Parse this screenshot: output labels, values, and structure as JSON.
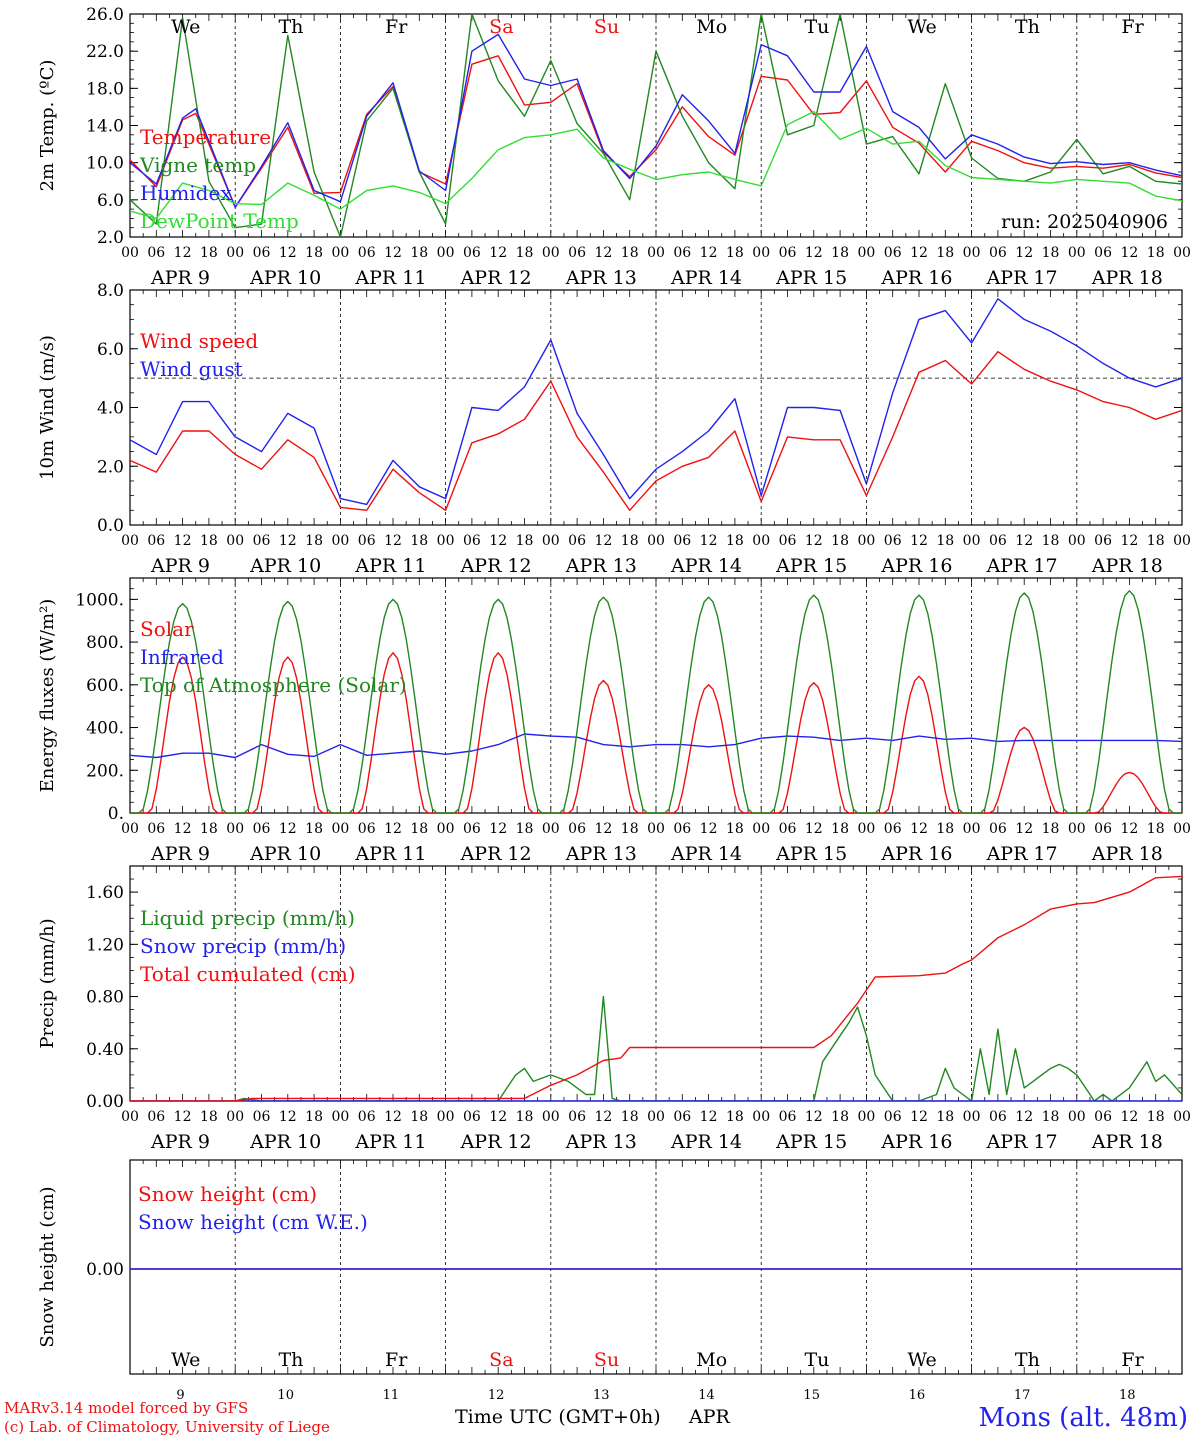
{
  "colors": {
    "red": "#ee1111",
    "green": "#228822",
    "blue": "#2222ee",
    "light_green": "#33dd33",
    "axis": "#000000"
  },
  "days": [
    {
      "day": "We",
      "date": "APR  9",
      "num": "9",
      "weekend": false
    },
    {
      "day": "Th",
      "date": "APR 10",
      "num": "10",
      "weekend": false
    },
    {
      "day": "Fr",
      "date": "APR 11",
      "num": "11",
      "weekend": false
    },
    {
      "day": "Sa",
      "date": "APR 12",
      "num": "12",
      "weekend": true
    },
    {
      "day": "Su",
      "date": "APR 13",
      "num": "13",
      "weekend": true
    },
    {
      "day": "Mo",
      "date": "APR 14",
      "num": "14",
      "weekend": false
    },
    {
      "day": "Tu",
      "date": "APR 15",
      "num": "15",
      "weekend": false
    },
    {
      "day": "We",
      "date": "APR 16",
      "num": "16",
      "weekend": false
    },
    {
      "day": "Th",
      "date": "APR 17",
      "num": "17",
      "weekend": false
    },
    {
      "day": "Fr",
      "date": "APR 18",
      "num": "18",
      "weekend": false
    }
  ],
  "hour_ticks": [
    "00",
    "06",
    "12",
    "18"
  ],
  "run_label": "run: 2025040906",
  "footer": {
    "credit1": "MARv3.14 model forced by GFS",
    "credit2": "(c) Lab. of Climatology, University of Liege",
    "time_label": "Time UTC (GMT+0h)",
    "month": "APR",
    "station": "Mons (alt. 48m)"
  },
  "chart_data": [
    {
      "type": "line",
      "ylabel": "2m Temp. (ºC)",
      "ylim": [
        2,
        26
      ],
      "yticks": [
        "2.0",
        "6.0",
        "10.0",
        "14.0",
        "18.0",
        "22.0",
        "26.0"
      ],
      "series": [
        {
          "name": "Temperature",
          "color": "red",
          "x": [
            0,
            6,
            12,
            15,
            18,
            24,
            30,
            36,
            42,
            48,
            54,
            60,
            66,
            72,
            78,
            84,
            90,
            96,
            102,
            108,
            114,
            120,
            126,
            132,
            138,
            144,
            150,
            156,
            162,
            168,
            174,
            180,
            186,
            192,
            198,
            204,
            210,
            216,
            222,
            228,
            234,
            240
          ],
          "y": [
            10.3,
            7.4,
            14.6,
            15.3,
            12.0,
            5.2,
            9.4,
            13.8,
            6.7,
            6.8,
            15.2,
            18.2,
            9.0,
            7.7,
            20.6,
            21.5,
            16.2,
            16.5,
            18.5,
            11.1,
            8.5,
            11.4,
            16.0,
            12.8,
            10.8,
            19.3,
            18.9,
            15.2,
            15.4,
            18.8,
            13.8,
            12.1,
            9.0,
            12.3,
            11.3,
            10.0,
            9.4,
            9.6,
            9.4,
            9.8,
            8.9,
            8.4
          ]
        },
        {
          "name": "Vigne temp",
          "color": "green",
          "x": [
            0,
            6,
            12,
            18,
            24,
            30,
            36,
            42,
            48,
            54,
            60,
            66,
            72,
            78,
            84,
            90,
            96,
            102,
            108,
            114,
            120,
            126,
            132,
            138,
            144,
            150,
            156,
            162,
            168,
            174,
            180,
            186,
            192,
            198,
            204,
            210,
            216,
            222,
            228,
            234,
            240
          ],
          "y": [
            6.0,
            3.4,
            25.6,
            8.0,
            3.0,
            3.4,
            23.7,
            9.0,
            2.0,
            14.5,
            18.0,
            9.0,
            3.4,
            26.0,
            18.8,
            15.0,
            21.0,
            14.2,
            11.0,
            6.0,
            22.0,
            15.0,
            10.0,
            7.2,
            26.0,
            13.0,
            14.0,
            26.0,
            12.0,
            12.8,
            8.8,
            18.5,
            10.5,
            8.3,
            8.0,
            9.0,
            12.5,
            8.8,
            9.6,
            8.0,
            7.7
          ]
        },
        {
          "name": "Humidex",
          "color": "blue",
          "x": [
            0,
            6,
            12,
            15,
            18,
            24,
            30,
            36,
            42,
            48,
            54,
            60,
            66,
            72,
            78,
            84,
            90,
            96,
            102,
            108,
            114,
            120,
            126,
            132,
            138,
            144,
            150,
            156,
            162,
            168,
            174,
            180,
            186,
            192,
            198,
            204,
            210,
            216,
            222,
            228,
            234,
            240
          ],
          "y": [
            10.0,
            7.7,
            14.8,
            15.8,
            12.3,
            5.2,
            9.6,
            14.3,
            7.0,
            5.8,
            15.0,
            18.6,
            9.1,
            7.0,
            22.0,
            23.8,
            19.0,
            18.3,
            19.0,
            11.3,
            8.3,
            11.8,
            17.3,
            14.5,
            11.0,
            22.7,
            21.5,
            17.6,
            17.6,
            22.5,
            15.5,
            13.8,
            10.4,
            13.0,
            12.0,
            10.6,
            9.9,
            10.1,
            9.8,
            10.0,
            9.2,
            8.6
          ]
        },
        {
          "name": "DewPoint Temp",
          "color": "light_green",
          "x": [
            0,
            6,
            12,
            18,
            24,
            30,
            36,
            42,
            48,
            54,
            60,
            66,
            72,
            78,
            84,
            90,
            96,
            102,
            108,
            114,
            120,
            126,
            132,
            138,
            144,
            150,
            156,
            162,
            168,
            174,
            180,
            186,
            192,
            198,
            204,
            210,
            216,
            222,
            228,
            234,
            240
          ],
          "y": [
            4.8,
            4.0,
            7.8,
            7.0,
            5.6,
            5.5,
            7.8,
            6.5,
            5.0,
            7.0,
            7.5,
            6.8,
            5.6,
            8.3,
            11.4,
            12.7,
            13.0,
            13.6,
            10.5,
            9.3,
            8.2,
            8.7,
            9.0,
            8.2,
            7.5,
            14.1,
            15.5,
            12.5,
            13.7,
            12.0,
            12.3,
            9.7,
            8.4,
            8.2,
            8.0,
            7.8,
            8.2,
            8.0,
            7.8,
            6.4,
            5.9
          ]
        }
      ]
    },
    {
      "type": "line",
      "ylabel": "10m Wind (m/s)",
      "ylim": [
        0,
        8
      ],
      "yticks": [
        "0.0",
        "2.0",
        "4.0",
        "6.0",
        "8.0"
      ],
      "reference_line": 5.0,
      "series": [
        {
          "name": "Wind speed",
          "color": "red",
          "x": [
            0,
            6,
            12,
            18,
            24,
            30,
            36,
            42,
            48,
            54,
            60,
            66,
            72,
            78,
            84,
            90,
            96,
            102,
            108,
            114,
            120,
            126,
            132,
            138,
            144,
            150,
            156,
            162,
            168,
            174,
            180,
            186,
            192,
            198,
            204,
            210,
            216,
            222,
            228,
            234,
            240
          ],
          "y": [
            2.2,
            1.8,
            3.2,
            3.2,
            2.4,
            1.9,
            2.9,
            2.3,
            0.6,
            0.5,
            1.9,
            1.1,
            0.5,
            2.8,
            3.1,
            3.6,
            4.9,
            3.0,
            1.8,
            0.5,
            1.5,
            2.0,
            2.3,
            3.2,
            0.8,
            3.0,
            2.9,
            2.9,
            1.0,
            3.0,
            5.2,
            5.6,
            4.8,
            5.9,
            5.3,
            4.9,
            4.6,
            4.2,
            4.0,
            3.6,
            3.9
          ]
        },
        {
          "name": "Wind gust",
          "color": "blue",
          "x": [
            0,
            6,
            12,
            18,
            24,
            30,
            36,
            42,
            48,
            54,
            60,
            66,
            72,
            78,
            84,
            90,
            96,
            102,
            108,
            114,
            120,
            126,
            132,
            138,
            144,
            150,
            156,
            162,
            168,
            174,
            180,
            186,
            192,
            198,
            204,
            210,
            216,
            222,
            228,
            234,
            240
          ],
          "y": [
            2.9,
            2.4,
            4.2,
            4.2,
            3.0,
            2.5,
            3.8,
            3.3,
            0.9,
            0.7,
            2.2,
            1.3,
            0.9,
            4.0,
            3.9,
            4.7,
            6.3,
            3.8,
            2.4,
            0.9,
            1.9,
            2.5,
            3.2,
            4.3,
            1.0,
            4.0,
            4.0,
            3.9,
            1.4,
            4.5,
            7.0,
            7.3,
            6.2,
            7.7,
            7.0,
            6.6,
            6.1,
            5.5,
            5.0,
            4.7,
            5.0
          ]
        }
      ]
    },
    {
      "type": "line",
      "ylabel": "Energy fluxes (W/m²)",
      "ylim": [
        0,
        1100
      ],
      "yticks": [
        "0.",
        "200.",
        "400.",
        "600.",
        "800.",
        "1000."
      ],
      "series": [
        {
          "name": "Solar",
          "color": "red",
          "peaks": [
            [
              12,
              730
            ],
            [
              36,
              730
            ],
            [
              60,
              750
            ],
            [
              84,
              750
            ],
            [
              108,
              620
            ],
            [
              132,
              600
            ],
            [
              156,
              610
            ],
            [
              180,
              640
            ],
            [
              204,
              400
            ],
            [
              228,
              190
            ]
          ]
        },
        {
          "name": "Infrared",
          "color": "blue",
          "x": [
            0,
            6,
            12,
            18,
            24,
            30,
            36,
            42,
            48,
            54,
            60,
            66,
            72,
            78,
            84,
            90,
            96,
            102,
            108,
            114,
            120,
            126,
            132,
            138,
            144,
            150,
            156,
            162,
            168,
            174,
            180,
            186,
            192,
            198,
            204,
            210,
            216,
            222,
            228,
            234,
            240
          ],
          "y": [
            270,
            260,
            280,
            280,
            260,
            320,
            275,
            265,
            320,
            270,
            280,
            290,
            275,
            290,
            320,
            370,
            360,
            355,
            320,
            310,
            320,
            320,
            310,
            320,
            350,
            360,
            355,
            340,
            350,
            340,
            360,
            345,
            350,
            335,
            340,
            340,
            340,
            340,
            340,
            340,
            335
          ]
        },
        {
          "name": "Top of Atmosphere (Solar)",
          "color": "green",
          "peaks": [
            [
              12,
              980
            ],
            [
              36,
              990
            ],
            [
              60,
              1000
            ],
            [
              84,
              1000
            ],
            [
              108,
              1010
            ],
            [
              132,
              1010
            ],
            [
              156,
              1020
            ],
            [
              180,
              1020
            ],
            [
              204,
              1030
            ],
            [
              228,
              1040
            ]
          ]
        }
      ]
    },
    {
      "type": "line",
      "ylabel": "Precip (mm/h)",
      "ylim": [
        0,
        1.8
      ],
      "yticks": [
        "0.00",
        "0.40",
        "0.80",
        "1.20",
        "1.60"
      ],
      "series": [
        {
          "name": "Liquid precip (mm/h)",
          "color": "green",
          "x": [
            0,
            24,
            26,
            30,
            84,
            88,
            90,
            92,
            96,
            100,
            102,
            104,
            106,
            108,
            110,
            112,
            128,
            156,
            158,
            162,
            164,
            166,
            168,
            170,
            174,
            180,
            184,
            186,
            188,
            190,
            192,
            194,
            196,
            198,
            200,
            202,
            204,
            206,
            210,
            212,
            214,
            216,
            218,
            220,
            222,
            224,
            228,
            232,
            234,
            236,
            240
          ],
          "y": [
            0,
            0,
            0.02,
            0,
            0,
            0.2,
            0.25,
            0.15,
            0.2,
            0.15,
            0.1,
            0.05,
            0.05,
            0.8,
            0.02,
            0,
            0,
            0,
            0.3,
            0.5,
            0.6,
            0.72,
            0.5,
            0.2,
            0,
            0,
            0.05,
            0.25,
            0.1,
            0.05,
            0,
            0.4,
            0.05,
            0.55,
            0.05,
            0.4,
            0.1,
            0.15,
            0.25,
            0.28,
            0.25,
            0.2,
            0.1,
            0,
            0.05,
            0,
            0.1,
            0.3,
            0.15,
            0.2,
            0.05
          ]
        },
        {
          "name": "Snow precip (mm/h)",
          "color": "blue",
          "x": [
            0,
            240
          ],
          "y": [
            0,
            0
          ]
        },
        {
          "name": "Total cumulated (cm)",
          "color": "red",
          "x": [
            0,
            24,
            28,
            90,
            96,
            102,
            108,
            112,
            114,
            156,
            160,
            166,
            170,
            180,
            186,
            190,
            192,
            198,
            204,
            210,
            216,
            220,
            228,
            234,
            240
          ],
          "y": [
            0,
            0,
            0.02,
            0.02,
            0.12,
            0.2,
            0.31,
            0.33,
            0.41,
            0.41,
            0.5,
            0.75,
            0.95,
            0.96,
            0.98,
            1.05,
            1.08,
            1.25,
            1.35,
            1.47,
            1.51,
            1.52,
            1.6,
            1.71,
            1.72
          ]
        }
      ]
    },
    {
      "type": "line",
      "ylabel": "Snow height (cm)",
      "yticks": [
        "0.00"
      ],
      "series": [
        {
          "name": "Snow height (cm)",
          "color": "red",
          "x": [
            0,
            240
          ],
          "y": [
            0,
            0
          ]
        },
        {
          "name": "Snow height (cm W.E.)",
          "color": "blue",
          "x": [
            0,
            240
          ],
          "y": [
            0,
            0
          ]
        }
      ]
    }
  ]
}
